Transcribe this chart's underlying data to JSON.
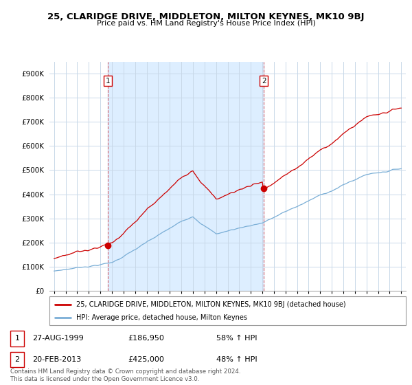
{
  "title": "25, CLARIDGE DRIVE, MIDDLETON, MILTON KEYNES, MK10 9BJ",
  "subtitle": "Price paid vs. HM Land Registry's House Price Index (HPI)",
  "legend_line1": "25, CLARIDGE DRIVE, MIDDLETON, MILTON KEYNES, MK10 9BJ (detached house)",
  "legend_line2": "HPI: Average price, detached house, Milton Keynes",
  "sale1_date": "27-AUG-1999",
  "sale1_price": "£186,950",
  "sale1_hpi": "58% ↑ HPI",
  "sale2_date": "20-FEB-2013",
  "sale2_price": "£425,000",
  "sale2_hpi": "48% ↑ HPI",
  "sale1_year": 1999.65,
  "sale2_year": 2013.12,
  "sale1_price_val": 186950,
  "sale2_price_val": 425000,
  "red_color": "#cc0000",
  "blue_color": "#7aaed6",
  "shade_color": "#ddeeff",
  "vline_color": "#cc0000",
  "footer": "Contains HM Land Registry data © Crown copyright and database right 2024.\nThis data is licensed under the Open Government Licence v3.0.",
  "ylim": [
    0,
    950000
  ],
  "yticks": [
    0,
    100000,
    200000,
    300000,
    400000,
    500000,
    600000,
    700000,
    800000,
    900000
  ],
  "ytick_labels": [
    "£0",
    "£100K",
    "£200K",
    "£300K",
    "£400K",
    "£500K",
    "£600K",
    "£700K",
    "£800K",
    "£900K"
  ]
}
